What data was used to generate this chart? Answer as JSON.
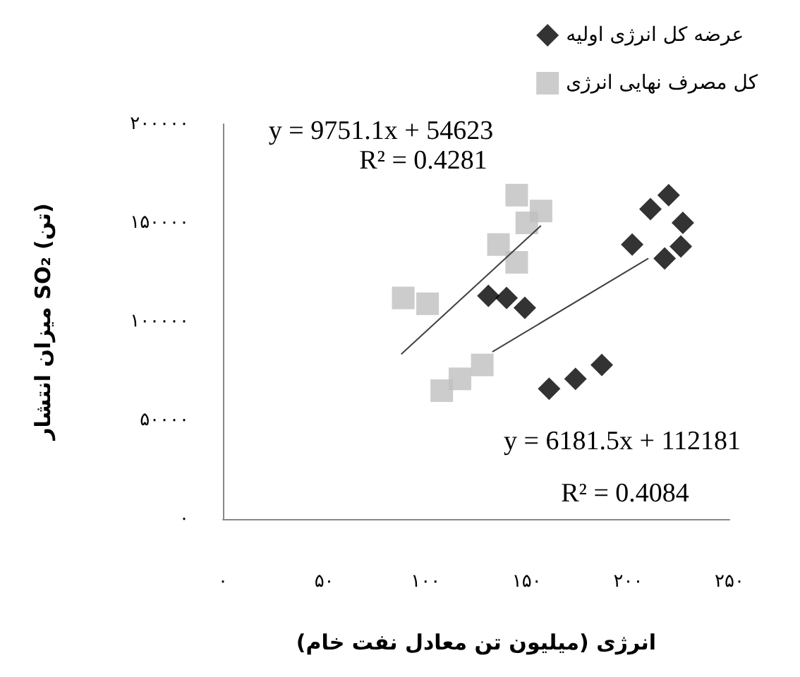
{
  "chart_data": {
    "type": "scatter",
    "xlabel": "انرژی (میلیون تن معادل نفت خام)",
    "ylabel": "میزان انتشار SO₂ (تن)",
    "xlim": [
      0,
      250
    ],
    "xticks": [
      {
        "value": 0,
        "label": "۰"
      },
      {
        "value": 50,
        "label": "۵۰"
      },
      {
        "value": 100,
        "label": "۱۰۰"
      },
      {
        "value": 150,
        "label": "۱۵۰"
      },
      {
        "value": 200,
        "label": "۲۰۰"
      },
      {
        "value": 250,
        "label": "۲۵۰"
      }
    ],
    "ylim": [
      0,
      200000
    ],
    "yticks": [
      {
        "value": 0,
        "label": "۰"
      },
      {
        "value": 50000,
        "label": "۵۰۰۰۰"
      },
      {
        "value": 100000,
        "label": "۱۰۰۰۰۰"
      },
      {
        "value": 150000,
        "label": "۱۵۰۰۰۰"
      },
      {
        "value": 200000,
        "label": "۲۰۰۰۰۰"
      }
    ],
    "grid": false,
    "legend": "top right",
    "series": [
      {
        "name": "عرضه کل انرژی اولیه",
        "color": "#000000",
        "marker": "diamond",
        "x": [
          211,
          220,
          227,
          202,
          218,
          226,
          131,
          140,
          149,
          161,
          174,
          187
        ],
        "values": [
          157000,
          164000,
          150000,
          139000,
          132000,
          138000,
          113000,
          112000,
          107000,
          66000,
          71000,
          78000
        ]
      },
      {
        "name": "کل مصرف نهایی انرژی",
        "color": "#bfbfbf",
        "marker": "square",
        "x": [
          145,
          157,
          136,
          145,
          150,
          89,
          101,
          108,
          117,
          128
        ],
        "values": [
          164000,
          156000,
          139000,
          130000,
          150000,
          112000,
          109000,
          65000,
          71000,
          78000
        ]
      },
      {
        "type": "line",
        "color": "#404040",
        "marker": "none",
        "x": [
          88,
          157
        ],
        "values": [
          83500,
          148600
        ]
      },
      {
        "type": "line",
        "color": "#404040",
        "marker": "none",
        "x": [
          133,
          210
        ],
        "values": [
          84700,
          132000
        ]
      }
    ],
    "annotations": [
      "y = 9751.1x + 54623",
      "R² = 0.4281",
      "y = 6181.5x + 112181",
      "R² = 0.4084"
    ]
  }
}
